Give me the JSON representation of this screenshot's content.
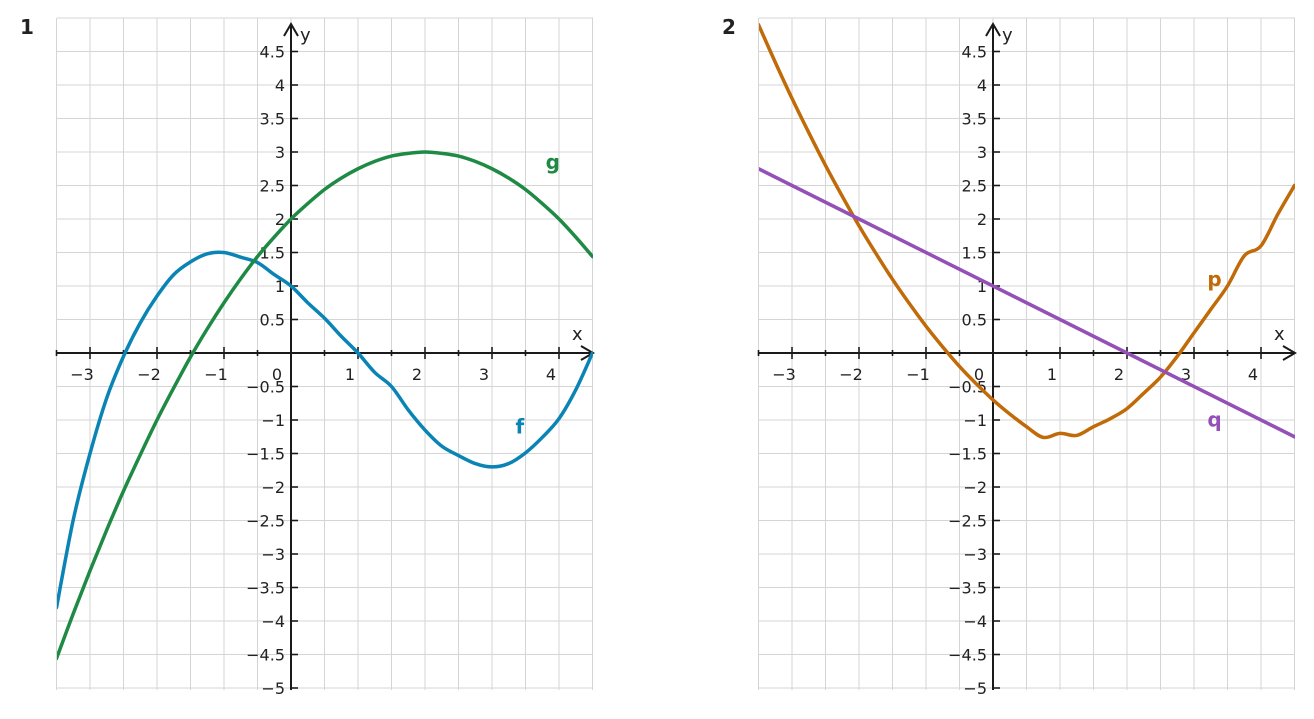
{
  "chart_data": [
    {
      "type": "line",
      "panel_number": "1",
      "xlabel": "x",
      "ylabel": "y",
      "xlim": [
        -3.5,
        4.5
      ],
      "ylim": [
        -5,
        5
      ],
      "x_ticks": [
        -3,
        -2,
        -1,
        0,
        1,
        2,
        3,
        4
      ],
      "x_tick_labels": [
        "−3",
        "−2",
        "−1",
        "0",
        "1",
        "2",
        "3",
        "4"
      ],
      "y_ticks": [
        4.5,
        4,
        3.5,
        3,
        2.5,
        2,
        1.5,
        1,
        0.5,
        -0.5,
        -1,
        -1.5,
        -2,
        -2.5,
        -3,
        -3.5,
        -4,
        -4.5,
        -5
      ],
      "y_tick_labels": [
        "4.5",
        "4",
        "3.5",
        "3",
        "2.5",
        "2",
        "1.5",
        "1",
        "0.5",
        "−0.5",
        "−1",
        "−1.5",
        "−2",
        "−2.5",
        "−3",
        "−3.5",
        "−4",
        "−4.5",
        "−5"
      ],
      "grid": true,
      "series": [
        {
          "name": "f",
          "color": "#0a84b5",
          "x": [
            -3.5,
            -3.25,
            -3,
            -2.75,
            -2.5,
            -2.25,
            -2,
            -1.75,
            -1.5,
            -1.25,
            -1,
            -0.75,
            -0.5,
            -0.25,
            0,
            0.25,
            0.5,
            0.75,
            1,
            1.25,
            1.5,
            1.75,
            2,
            2.25,
            2.5,
            2.75,
            3,
            3.25,
            3.5,
            3.75,
            4,
            4.25,
            4.5
          ],
          "y": [
            -3.8,
            -2.49,
            -1.5,
            -0.67,
            -0.05,
            0.45,
            0.85,
            1.17,
            1.36,
            1.48,
            1.5,
            1.43,
            1.35,
            1.17,
            1.0,
            0.75,
            0.52,
            0.25,
            0.0,
            -0.29,
            -0.5,
            -0.85,
            -1.15,
            -1.39,
            -1.53,
            -1.65,
            -1.7,
            -1.65,
            -1.49,
            -1.26,
            -0.98,
            -0.55,
            0.0
          ]
        },
        {
          "name": "g",
          "color": "#1e8a44",
          "x": [
            -3.5,
            -3.25,
            -3,
            -2.75,
            -2.5,
            -2.25,
            -2,
            -1.75,
            -1.5,
            -1.25,
            -1,
            -0.75,
            -0.5,
            -0.25,
            0,
            0.25,
            0.5,
            0.75,
            1,
            1.25,
            1.5,
            1.75,
            2,
            2.25,
            2.5,
            2.75,
            3,
            3.25,
            3.5,
            3.75,
            4,
            4.25,
            4.5
          ],
          "y": [
            -4.56,
            -3.89,
            -3.25,
            -2.64,
            -2.06,
            -1.52,
            -1.0,
            -0.52,
            -0.06,
            0.36,
            0.75,
            1.11,
            1.44,
            1.73,
            2.0,
            2.23,
            2.44,
            2.61,
            2.75,
            2.86,
            2.94,
            2.98,
            3.0,
            2.98,
            2.94,
            2.86,
            2.75,
            2.61,
            2.44,
            2.23,
            2.0,
            1.73,
            1.44
          ]
        }
      ],
      "annotations": [
        {
          "text": "f",
          "x": 3.35,
          "y": -1.2
        },
        {
          "text": "g",
          "x": 3.8,
          "y": 2.75
        }
      ]
    },
    {
      "type": "line",
      "panel_number": "2",
      "xlabel": "x",
      "ylabel": "y",
      "xlim": [
        -3.5,
        4.5
      ],
      "ylim": [
        -5,
        5
      ],
      "x_ticks": [
        -3,
        -2,
        -1,
        0,
        1,
        2,
        3,
        4
      ],
      "x_tick_labels": [
        "−3",
        "−2",
        "−1",
        "0",
        "1",
        "2",
        "3",
        "4"
      ],
      "y_ticks": [
        4.5,
        4,
        3.5,
        3,
        2.5,
        2,
        1.5,
        1,
        0.5,
        -0.5,
        -1,
        -1.5,
        -2,
        -2.5,
        -3,
        -3.5,
        -4,
        -4.5,
        -5
      ],
      "y_tick_labels": [
        "4.5",
        "4",
        "3.5",
        "3",
        "2.5",
        "2",
        "1.5",
        "1",
        "0.5",
        "−0.5",
        "−1",
        "−1.5",
        "−2",
        "−2.5",
        "−3",
        "−3.5",
        "−4",
        "−4.5",
        "−5"
      ],
      "grid": true,
      "series": [
        {
          "name": "p",
          "color": "#c06a08",
          "x": [
            -3.5,
            -3.25,
            -3,
            -2.75,
            -2.5,
            -2.25,
            -2,
            -1.75,
            -1.5,
            -1.25,
            -1,
            -0.75,
            -0.5,
            -0.25,
            0,
            0.25,
            0.5,
            0.75,
            1,
            1.25,
            1.5,
            1.75,
            2,
            2.25,
            2.5,
            2.75,
            3,
            3.25,
            3.5,
            3.75,
            4,
            4.25,
            4.5
          ],
          "y": [
            4.9,
            4.34,
            3.8,
            3.29,
            2.8,
            2.34,
            1.9,
            1.49,
            1.1,
            0.74,
            0.4,
            0.09,
            -0.2,
            -0.46,
            -0.7,
            -0.91,
            -1.1,
            -1.26,
            -1.2,
            -1.23,
            -1.1,
            -0.98,
            -0.83,
            -0.6,
            -0.36,
            -0.05,
            0.3,
            0.65,
            1.0,
            1.45,
            1.6,
            2.07,
            2.5
          ]
        },
        {
          "name": "q",
          "color": "#9550b8",
          "x": [
            -3.5,
            4.5
          ],
          "y": [
            2.75,
            -1.25
          ]
        }
      ],
      "annotations": [
        {
          "text": "p",
          "x": 3.2,
          "y": 1.0
        },
        {
          "text": "q",
          "x": 3.2,
          "y": -1.1
        }
      ]
    }
  ]
}
